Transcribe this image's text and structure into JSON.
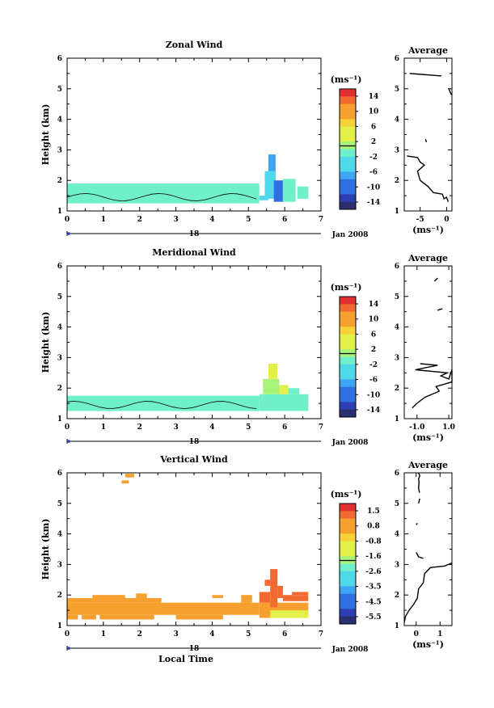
{
  "panels": [
    {
      "title": "Zonal Wind",
      "ylabel": "Height (km)",
      "xlabel": "",
      "date_day": "18",
      "date_label": "Jan 2008",
      "colorbar": {
        "unit": "(ms⁻¹)",
        "ticks": [
          "14",
          "10",
          "6",
          "2",
          "-2",
          "-6",
          "-10",
          "-14"
        ]
      },
      "profile": {
        "title": "Average",
        "xlabel": "(ms⁻¹)",
        "xticks": [
          "-5",
          "0"
        ]
      }
    },
    {
      "title": "Meridional Wind",
      "ylabel": "Height (km)",
      "xlabel": "",
      "date_day": "18",
      "date_label": "Jan 2008",
      "colorbar": {
        "unit": "(ms⁻¹)",
        "ticks": [
          "14",
          "10",
          "6",
          "2",
          "-2",
          "-6",
          "-10",
          "-14"
        ]
      },
      "profile": {
        "title": "Average",
        "xlabel": "(ms⁻¹)",
        "xticks": [
          "-1.0",
          "1.0"
        ]
      }
    },
    {
      "title": "Vertical Wind",
      "ylabel": "Height (km)",
      "xlabel": "Local Time",
      "date_day": "18",
      "date_label": "Jan 2008",
      "colorbar": {
        "unit": "(ms⁻¹)",
        "ticks": [
          "1.5",
          "0.8",
          "-0.8",
          "-1.6",
          "-2.6",
          "-3.5",
          "-4.5",
          "-5.5"
        ]
      },
      "profile": {
        "title": "Average",
        "xlabel": "(ms⁻¹)",
        "xticks": [
          "0",
          "1"
        ]
      }
    }
  ],
  "chart_data": [
    {
      "type": "heatmap",
      "title": "Zonal Wind",
      "xlabel": "",
      "ylabel": "Height (km)",
      "xlim": [
        0,
        7
      ],
      "ylim": [
        1,
        6
      ],
      "xticks": [
        0,
        1,
        2,
        3,
        4,
        5,
        6,
        7
      ],
      "yticks": [
        1,
        2,
        3,
        4,
        5,
        6
      ],
      "colorbar_unit": "(ms⁻¹)",
      "colorbar_range": [
        -16,
        16
      ],
      "colors": {
        "low": "#7fe8c4",
        "mid": "#5ad7dc",
        "blue": "#3d8fe8",
        "dark": "#2a5ad8"
      },
      "cells": [
        {
          "x0": 0,
          "x1": 5.3,
          "y0": 1.25,
          "y1": 1.9,
          "v": -2.5
        },
        {
          "x0": 5.3,
          "x1": 5.55,
          "y0": 1.35,
          "y1": 1.5,
          "v": -3
        },
        {
          "x0": 5.45,
          "x1": 5.75,
          "y0": 1.4,
          "y1": 2.3,
          "v": -5
        },
        {
          "x0": 5.55,
          "x1": 5.75,
          "y0": 2.3,
          "y1": 2.85,
          "v": -6
        },
        {
          "x0": 5.7,
          "x1": 5.95,
          "y0": 1.3,
          "y1": 2.0,
          "v": -9
        },
        {
          "x0": 5.95,
          "x1": 6.3,
          "y0": 1.3,
          "y1": 2.05,
          "v": -2.5
        },
        {
          "x0": 6.35,
          "x1": 6.65,
          "y0": 1.4,
          "y1": 1.8,
          "v": -2.5
        }
      ],
      "profile": {
        "title": "Average",
        "xlabel": "(ms⁻¹)",
        "xlim": [
          -8,
          1
        ],
        "ylim": [
          1,
          6
        ],
        "xticks": [
          -5,
          0
        ],
        "segments": [
          [
            [
              -7,
              5.5
            ],
            [
              -1,
              5.42
            ]
          ],
          [
            [
              0.4,
              5.0
            ],
            [
              0.9,
              4.8
            ]
          ],
          [
            [
              -4,
              3.35
            ],
            [
              -3.8,
              3.25
            ]
          ],
          [
            [
              -7.5,
              2.8
            ],
            [
              -5.5,
              2.75
            ],
            [
              -5,
              2.6
            ],
            [
              -4.2,
              2.5
            ],
            [
              -5.5,
              2.3
            ],
            [
              -5,
              2.0
            ],
            [
              -3.5,
              1.8
            ],
            [
              -2.5,
              1.6
            ],
            [
              -0.8,
              1.55
            ],
            [
              -0.5,
              1.4
            ],
            [
              0,
              1.45
            ],
            [
              0.3,
              1.3
            ]
          ]
        ]
      }
    },
    {
      "type": "heatmap",
      "title": "Meridional Wind",
      "xlabel": "",
      "ylabel": "Height (km)",
      "xlim": [
        0,
        7
      ],
      "ylim": [
        1,
        6
      ],
      "xticks": [
        0,
        1,
        2,
        3,
        4,
        5,
        6,
        7
      ],
      "yticks": [
        1,
        2,
        3,
        4,
        5,
        6
      ],
      "colorbar_unit": "(ms⁻¹)",
      "colorbar_range": [
        -16,
        16
      ],
      "cells": [
        {
          "x0": 0,
          "x1": 5.3,
          "y0": 1.25,
          "y1": 1.75,
          "v": -2.5
        },
        {
          "x0": 5.3,
          "x1": 6.65,
          "y0": 1.25,
          "y1": 1.8,
          "v": -2.5
        },
        {
          "x0": 5.4,
          "x1": 5.85,
          "y0": 1.8,
          "y1": 2.3,
          "v": 2.5
        },
        {
          "x0": 5.55,
          "x1": 5.8,
          "y0": 2.3,
          "y1": 2.8,
          "v": 3.5
        },
        {
          "x0": 5.85,
          "x1": 6.1,
          "y0": 1.8,
          "y1": 2.1,
          "v": 4
        },
        {
          "x0": 6.1,
          "x1": 6.4,
          "y0": 1.8,
          "y1": 2.0,
          "v": -2
        }
      ],
      "profile": {
        "title": "Average",
        "xlabel": "(ms⁻¹)",
        "xlim": [
          -1.8,
          1.2
        ],
        "ylim": [
          1,
          6
        ],
        "xticks": [
          -1.0,
          1.0
        ],
        "segments": [
          [
            [
              0.1,
              5.5
            ],
            [
              0.3,
              5.6
            ]
          ],
          [
            [
              0.3,
              4.55
            ],
            [
              0.6,
              4.6
            ]
          ],
          [
            [
              -0.8,
              2.8
            ],
            [
              0.3,
              2.75
            ],
            [
              -1.1,
              2.6
            ],
            [
              0.9,
              2.5
            ],
            [
              0.5,
              2.4
            ],
            [
              1.0,
              2.3
            ],
            [
              1.2,
              2.6
            ],
            [
              1.2,
              2.2
            ],
            [
              0.2,
              2.05
            ],
            [
              0.4,
              1.9
            ],
            [
              -0.5,
              1.7
            ],
            [
              -1.0,
              1.5
            ],
            [
              -1.3,
              1.35
            ]
          ]
        ]
      }
    },
    {
      "type": "heatmap",
      "title": "Vertical Wind",
      "xlabel": "Local Time",
      "ylabel": "Height (km)",
      "xlim": [
        0,
        7
      ],
      "ylim": [
        1,
        6
      ],
      "xticks": [
        0,
        1,
        2,
        3,
        4,
        5,
        6,
        7
      ],
      "yticks": [
        1,
        2,
        3,
        4,
        5,
        6
      ],
      "colorbar_unit": "(ms⁻¹)",
      "colorbar_range": [
        -6,
        2
      ],
      "cells": [
        {
          "x0": 1.6,
          "x1": 1.85,
          "y0": 5.85,
          "y1": 5.97,
          "v": 0.9
        },
        {
          "x0": 1.5,
          "x1": 1.7,
          "y0": 5.65,
          "y1": 5.75,
          "v": 0.9
        },
        {
          "x0": 0,
          "x1": 5.3,
          "y0": 1.35,
          "y1": 1.75,
          "v": 0.2
        },
        {
          "x0": 0,
          "x1": 0.3,
          "y0": 1.2,
          "y1": 1.35,
          "v": 0.2
        },
        {
          "x0": 0.4,
          "x1": 0.8,
          "y0": 1.2,
          "y1": 1.35,
          "v": 0.2
        },
        {
          "x0": 0.9,
          "x1": 2.4,
          "y0": 1.2,
          "y1": 1.35,
          "v": 0.2
        },
        {
          "x0": 3.0,
          "x1": 4.3,
          "y0": 1.2,
          "y1": 1.35,
          "v": 0.2
        },
        {
          "x0": 0,
          "x1": 2.6,
          "y0": 1.75,
          "y1": 1.9,
          "v": 0.3
        },
        {
          "x0": 5.3,
          "x1": 6.65,
          "y0": 1.25,
          "y1": 1.75,
          "v": 0.3
        },
        {
          "x0": 0.7,
          "x1": 1.6,
          "y0": 1.9,
          "y1": 2.0,
          "v": 0.2
        },
        {
          "x0": 1.9,
          "x1": 2.2,
          "y0": 1.9,
          "y1": 2.05,
          "v": 0.3
        },
        {
          "x0": 4.0,
          "x1": 4.3,
          "y0": 1.9,
          "y1": 2.0,
          "v": 0.2
        },
        {
          "x0": 4.8,
          "x1": 5.1,
          "y0": 1.75,
          "y1": 2.0,
          "v": 0.9
        },
        {
          "x0": 5.3,
          "x1": 5.6,
          "y0": 1.75,
          "y1": 2.1,
          "v": 1.0
        },
        {
          "x0": 5.6,
          "x1": 5.8,
          "y0": 1.6,
          "y1": 2.85,
          "v": 1.2
        },
        {
          "x0": 5.45,
          "x1": 5.6,
          "y0": 2.3,
          "y1": 2.5,
          "v": 1.1
        },
        {
          "x0": 5.8,
          "x1": 5.95,
          "y0": 1.9,
          "y1": 2.3,
          "v": 1.1
        },
        {
          "x0": 5.95,
          "x1": 6.65,
          "y0": 1.8,
          "y1": 2.0,
          "v": 1.0
        },
        {
          "x0": 6.2,
          "x1": 6.65,
          "y0": 2.0,
          "y1": 2.1,
          "v": 1.0
        },
        {
          "x0": 5.6,
          "x1": 6.65,
          "y0": 1.25,
          "y1": 1.5,
          "v": -0.6
        }
      ],
      "profile": {
        "title": "Average",
        "xlabel": "(ms⁻¹)",
        "xlim": [
          -0.5,
          1.5
        ],
        "ylim": [
          1,
          6
        ],
        "xticks": [
          0,
          1
        ],
        "segments": [
          [
            [
              0.1,
              6.0
            ],
            [
              0.15,
              5.9
            ],
            [
              0.1,
              5.8
            ],
            [
              0.12,
              5.7
            ],
            [
              0.1,
              5.5
            ],
            [
              0.14,
              5.35
            ]
          ],
          [
            [
              0.15,
              5.15
            ],
            [
              0.1,
              5.0
            ]
          ],
          [
            [
              0.05,
              4.35
            ],
            [
              0.0,
              4.3
            ]
          ],
          [
            [
              0.0,
              3.4
            ],
            [
              0.1,
              3.25
            ],
            [
              0.3,
              3.2
            ]
          ],
          [
            [
              1.5,
              3.05
            ],
            [
              1.2,
              2.95
            ],
            [
              0.6,
              2.9
            ],
            [
              0.35,
              2.7
            ],
            [
              0.3,
              2.4
            ],
            [
              0.1,
              2.2
            ],
            [
              0.05,
              1.9
            ],
            [
              -0.1,
              1.7
            ],
            [
              -0.3,
              1.5
            ],
            [
              -0.45,
              1.3
            ],
            [
              -0.5,
              1.1
            ]
          ]
        ]
      }
    }
  ]
}
